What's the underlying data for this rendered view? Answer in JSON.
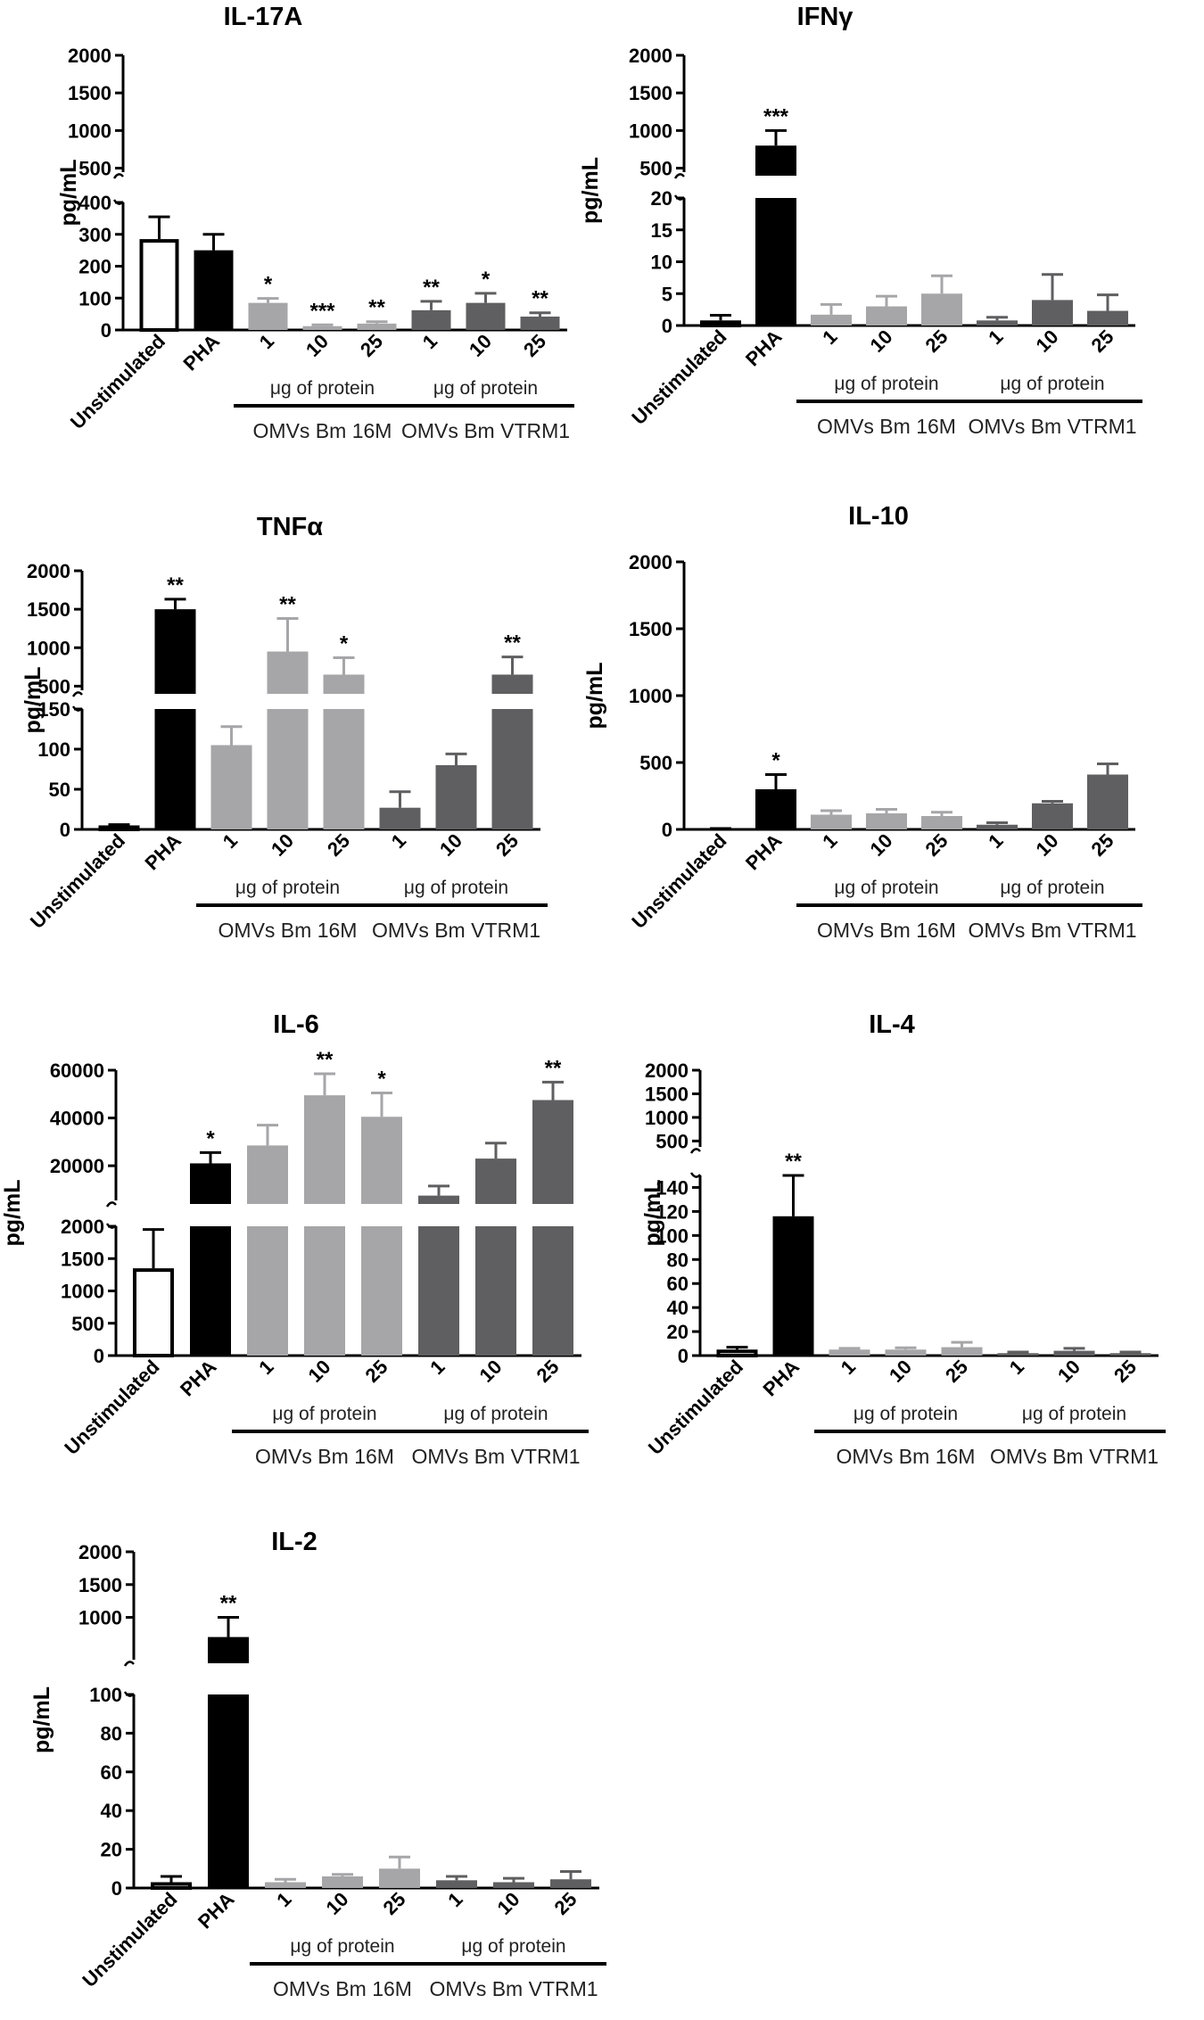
{
  "chart_data": [
    {
      "type": "bar",
      "title": "IL-17A",
      "ylabel": "pg/mL",
      "categories": [
        "Unstimulated",
        "PHA",
        "1",
        "10",
        "25",
        "1",
        "10",
        "25"
      ],
      "values": [
        285,
        250,
        85,
        12,
        20,
        62,
        85,
        42
      ],
      "errors": [
        70,
        50,
        14,
        4,
        6,
        28,
        30,
        12
      ],
      "significance": [
        "",
        "",
        "*",
        "***",
        "**",
        "**",
        "*",
        "**"
      ],
      "colors": [
        "#ffffff",
        "#000000",
        "#a6a6a8",
        "#a6a6a8",
        "#a6a6a8",
        "#5f5f61",
        "#5f5f61",
        "#5f5f61"
      ],
      "y_segments": [
        {
          "range": [
            0,
            400
          ],
          "ticks": [
            0,
            100,
            200,
            300,
            400
          ]
        },
        {
          "range": [
            400,
            2000
          ],
          "ticks": [
            500,
            1000,
            1500,
            2000
          ]
        }
      ],
      "group_label": "μg of protein",
      "groups": [
        "OMVs Bm 16M",
        "OMVs Bm VTRM1"
      ]
    },
    {
      "type": "bar",
      "title": "IFNγ",
      "ylabel": "pg/mL",
      "categories": [
        "Unstimulated",
        "PHA",
        "1",
        "10",
        "25",
        "1",
        "10",
        "25"
      ],
      "values": [
        0.8,
        800,
        1.7,
        3,
        5,
        0.8,
        4,
        2.3
      ],
      "errors": [
        0.8,
        200,
        1.6,
        1.6,
        2.8,
        0.5,
        4,
        2.5
      ],
      "significance": [
        "",
        "***",
        "",
        "",
        "",
        "",
        "",
        ""
      ],
      "colors": [
        "#ffffff",
        "#000000",
        "#a6a6a8",
        "#a6a6a8",
        "#a6a6a8",
        "#5f5f61",
        "#5f5f61",
        "#5f5f61"
      ],
      "y_segments": [
        {
          "range": [
            0,
            20
          ],
          "ticks": [
            0,
            5,
            10,
            15,
            20
          ]
        },
        {
          "range": [
            400,
            2000
          ],
          "ticks": [
            500,
            1000,
            1500,
            2000
          ]
        }
      ],
      "group_label": "μg of protein",
      "groups": [
        "OMVs Bm 16M",
        "OMVs Bm VTRM1"
      ]
    },
    {
      "type": "bar",
      "title": "TNFα",
      "ylabel": "pg/mL",
      "categories": [
        "Unstimulated",
        "PHA",
        "1",
        "10",
        "25",
        "1",
        "10",
        "25"
      ],
      "values": [
        5,
        1500,
        105,
        950,
        650,
        27,
        80,
        650
      ],
      "errors": [
        1,
        130,
        23,
        430,
        220,
        20,
        14,
        230
      ],
      "significance": [
        "",
        "**",
        "",
        "**",
        "*",
        "",
        "",
        "**"
      ],
      "colors": [
        "#ffffff",
        "#000000",
        "#a6a6a8",
        "#a6a6a8",
        "#a6a6a8",
        "#5f5f61",
        "#5f5f61",
        "#5f5f61"
      ],
      "y_segments": [
        {
          "range": [
            0,
            150
          ],
          "ticks": [
            0,
            50,
            100,
            150
          ]
        },
        {
          "range": [
            400,
            2000
          ],
          "ticks": [
            500,
            1000,
            1500,
            2000
          ]
        }
      ],
      "group_label": "μg of protein",
      "groups": [
        "OMVs Bm 16M",
        "OMVs Bm VTRM1"
      ]
    },
    {
      "type": "bar",
      "title": "IL-10",
      "ylabel": "pg/mL",
      "categories": [
        "Unstimulated",
        "PHA",
        "1",
        "10",
        "25",
        "1",
        "10",
        "25"
      ],
      "values": [
        5,
        300,
        110,
        120,
        100,
        35,
        195,
        410
      ],
      "errors": [
        2,
        110,
        30,
        30,
        28,
        15,
        15,
        80
      ],
      "significance": [
        "",
        "*",
        "",
        "",
        "",
        "",
        "",
        ""
      ],
      "colors": [
        "#ffffff",
        "#000000",
        "#a6a6a8",
        "#a6a6a8",
        "#a6a6a8",
        "#5f5f61",
        "#5f5f61",
        "#5f5f61"
      ],
      "y_segments": [
        {
          "range": [
            0,
            2000
          ],
          "ticks": [
            0,
            500,
            1000,
            1500,
            2000
          ]
        }
      ],
      "group_label": "μg of protein",
      "groups": [
        "OMVs Bm 16M",
        "OMVs Bm VTRM1"
      ]
    },
    {
      "type": "bar",
      "title": "IL-6",
      "ylabel": "pg/mL",
      "categories": [
        "Unstimulated",
        "PHA",
        "1",
        "10",
        "25",
        "1",
        "10",
        "25"
      ],
      "values": [
        1350,
        21000,
        28500,
        49500,
        40500,
        7500,
        23000,
        47500
      ],
      "errors": [
        600,
        4500,
        8500,
        9000,
        10000,
        4000,
        6500,
        7500
      ],
      "significance": [
        "",
        "*",
        "",
        "**",
        "*",
        "",
        "",
        "**"
      ],
      "colors": [
        "#ffffff",
        "#000000",
        "#a6a6a8",
        "#a6a6a8",
        "#a6a6a8",
        "#5f5f61",
        "#5f5f61",
        "#5f5f61"
      ],
      "y_segments": [
        {
          "range": [
            0,
            2000
          ],
          "ticks": [
            0,
            500,
            1000,
            1500,
            2000
          ]
        },
        {
          "range": [
            4000,
            60000
          ],
          "ticks": [
            20000,
            40000,
            60000
          ]
        }
      ],
      "group_label": "μg of protein",
      "groups": [
        "OMVs Bm 16M",
        "OMVs Bm VTRM1"
      ]
    },
    {
      "type": "bar",
      "title": "IL-4",
      "ylabel": "pg/mL",
      "categories": [
        "Unstimulated",
        "PHA",
        "1",
        "10",
        "25",
        "1",
        "10",
        "25"
      ],
      "values": [
        5,
        116,
        5,
        5,
        7,
        2,
        4,
        2
      ],
      "errors": [
        2,
        34,
        1,
        1.5,
        4,
        1,
        2,
        1
      ],
      "significance": [
        "",
        "**",
        "",
        "",
        "",
        "",
        "",
        ""
      ],
      "colors": [
        "#ffffff",
        "#000000",
        "#a6a6a8",
        "#a6a6a8",
        "#a6a6a8",
        "#5f5f61",
        "#5f5f61",
        "#5f5f61"
      ],
      "y_segments": [
        {
          "range": [
            0,
            150
          ],
          "ticks": [
            0,
            20,
            40,
            60,
            80,
            100,
            120,
            140
          ]
        },
        {
          "range": [
            300,
            2000
          ],
          "ticks": [
            500,
            1000,
            1500,
            2000
          ]
        }
      ],
      "group_label": "μg of protein",
      "groups": [
        "OMVs Bm 16M",
        "OMVs Bm VTRM1"
      ]
    },
    {
      "type": "bar",
      "title": "IL-2",
      "ylabel": "pg/mL",
      "categories": [
        "Unstimulated",
        "PHA",
        "1",
        "10",
        "25",
        "1",
        "10",
        "25"
      ],
      "values": [
        3,
        700,
        3,
        6,
        10,
        4,
        3,
        4.5
      ],
      "errors": [
        3,
        300,
        1.5,
        1,
        6,
        2,
        2,
        4
      ],
      "significance": [
        "",
        "**",
        "",
        "",
        "",
        "",
        "",
        ""
      ],
      "colors": [
        "#ffffff",
        "#000000",
        "#a6a6a8",
        "#a6a6a8",
        "#a6a6a8",
        "#5f5f61",
        "#5f5f61",
        "#5f5f61"
      ],
      "y_segments": [
        {
          "range": [
            0,
            100
          ],
          "ticks": [
            0,
            20,
            40,
            60,
            80,
            100
          ]
        },
        {
          "range": [
            300,
            2000
          ],
          "ticks": [
            1000,
            1500,
            2000
          ]
        }
      ],
      "group_label": "μg of protein",
      "groups": [
        "OMVs Bm 16M",
        "OMVs Bm VTRM1"
      ]
    }
  ]
}
